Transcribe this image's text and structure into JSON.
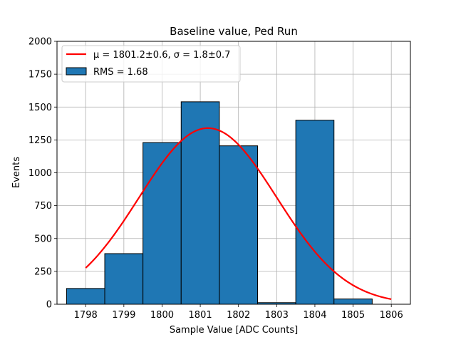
{
  "chart_data": {
    "type": "bar",
    "title": "Baseline value, Ped Run",
    "xlabel": "Sample Value [ADC Counts]",
    "ylabel": "Events",
    "xlim": [
      1797.25,
      1806.5
    ],
    "ylim": [
      0,
      2000
    ],
    "grid": true,
    "x_ticks": [
      1798,
      1799,
      1800,
      1801,
      1802,
      1803,
      1804,
      1805,
      1806
    ],
    "y_ticks": [
      0,
      250,
      500,
      750,
      1000,
      1250,
      1500,
      1750,
      2000
    ],
    "bins": {
      "edges": [
        1797.5,
        1798.5,
        1799.5,
        1800.5,
        1801.5,
        1802.5,
        1803.5,
        1804.5,
        1805.5
      ],
      "values": [
        120,
        385,
        1230,
        1540,
        1205,
        12,
        1400,
        40
      ]
    },
    "fit": {
      "type": "gaussian",
      "mean": 1801.2,
      "sigma": 1.8,
      "amplitude": 1340,
      "x_range": [
        1798,
        1806
      ],
      "color": "#ff0000"
    },
    "colors": {
      "bar_fill": "#1f77b4",
      "bar_edge": "#000000",
      "fit_line": "#ff0000",
      "grid": "#b0b0b0"
    },
    "legend": {
      "location": "upper-left",
      "entries": [
        {
          "kind": "line",
          "label": "μ = 1801.2±0.6, σ = 1.8±0.7"
        },
        {
          "kind": "patch",
          "label": "RMS = 1.68"
        }
      ]
    }
  }
}
